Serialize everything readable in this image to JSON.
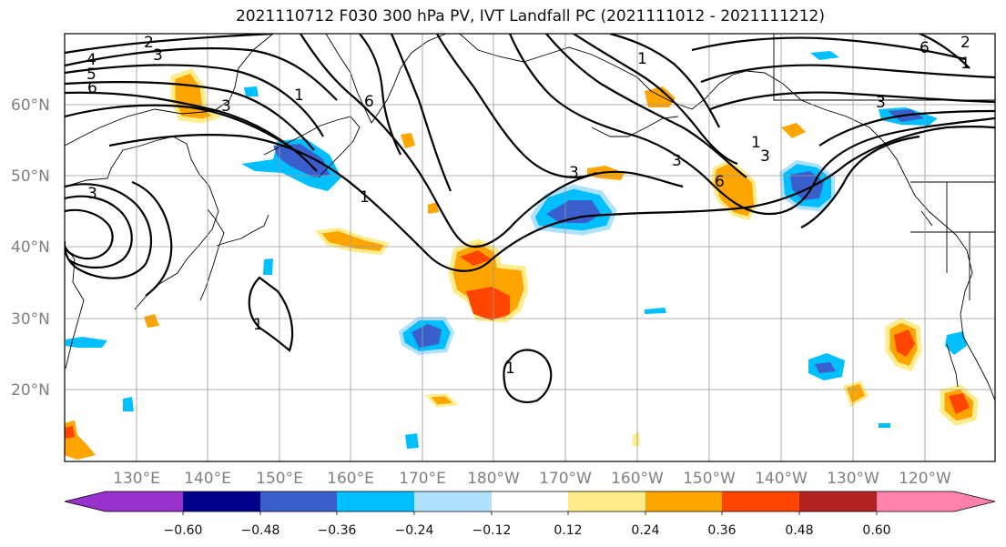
{
  "title": "2021110712 F030 300 hPa PV, IVT Landfall PC (2021111012 - 2021111212)",
  "map": {
    "lat_labels": [
      "60°N",
      "50°N",
      "40°N",
      "30°N",
      "20°N"
    ],
    "lon_labels": [
      "130°E",
      "140°E",
      "150°E",
      "160°E",
      "170°E",
      "180°W",
      "170°W",
      "160°W",
      "150°W",
      "140°W",
      "130°W",
      "120°W"
    ],
    "contour_labels": [
      "2",
      "3",
      "4",
      "5",
      "6",
      "3",
      "3",
      "1",
      "6",
      "1",
      "1",
      "3",
      "3",
      "1",
      "6",
      "1",
      "3",
      "1",
      "1",
      "3",
      "6",
      "2"
    ]
  },
  "colorbar": {
    "tick_labels": [
      "−0.60",
      "−0.48",
      "−0.36",
      "−0.24",
      "−0.12",
      "0.12",
      "0.24",
      "0.36",
      "0.48",
      "0.60"
    ],
    "colors": [
      "#9932cc",
      "#00008b",
      "#3a5fcd",
      "#00bfff",
      "#b0e2ff",
      "#ffffff",
      "#ffec8b",
      "#ffa500",
      "#ff4500",
      "#b22222",
      "#ff82ab"
    ]
  }
}
